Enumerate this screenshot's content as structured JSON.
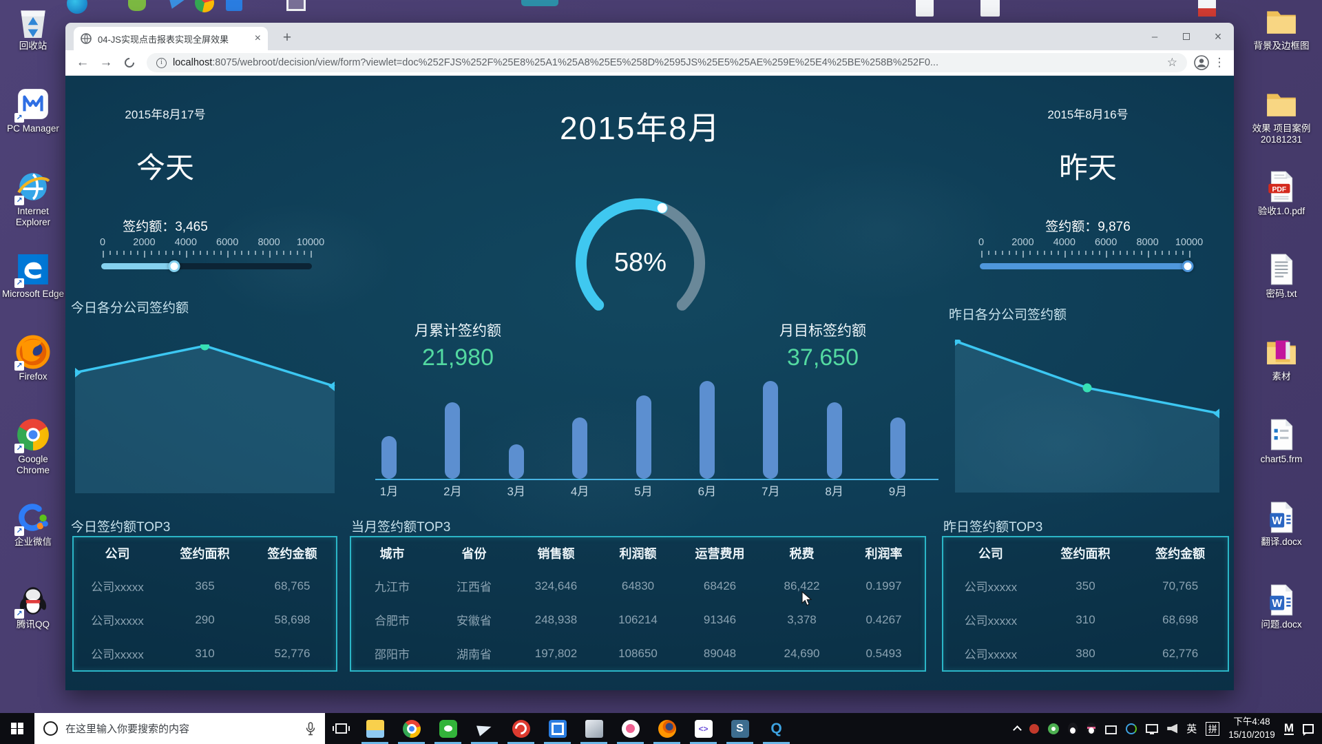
{
  "desktop": {
    "left_icons": [
      {
        "label": "回收站",
        "type": "recycle",
        "shortcut": false
      },
      {
        "label": "PC Manager",
        "type": "pcmanager",
        "shortcut": true
      },
      {
        "label": "Internet Explorer",
        "type": "ie",
        "shortcut": true
      },
      {
        "label": "Microsoft Edge",
        "type": "edge",
        "shortcut": true
      },
      {
        "label": "Firefox",
        "type": "firefox",
        "shortcut": true
      },
      {
        "label": "Google Chrome",
        "type": "chrome",
        "shortcut": true
      },
      {
        "label": "企业微信",
        "type": "wxwork",
        "shortcut": true
      },
      {
        "label": "腾讯QQ",
        "type": "qq",
        "shortcut": true
      }
    ],
    "right_icons": [
      {
        "label": "背景及边框图",
        "type": "folder",
        "shortcut": false
      },
      {
        "label": "效果 项目案例 20181231",
        "type": "folder",
        "shortcut": false
      },
      {
        "label": "验收1.0.pdf",
        "type": "pdf",
        "shortcut": false
      },
      {
        "label": "密码.txt",
        "type": "txt",
        "shortcut": false
      },
      {
        "label": "素材",
        "type": "folder-media",
        "shortcut": false
      },
      {
        "label": "chart5.frm",
        "type": "frm",
        "shortcut": false
      },
      {
        "label": "翻译.docx",
        "type": "docx",
        "shortcut": false
      },
      {
        "label": "问题.docx",
        "type": "docx",
        "shortcut": false
      }
    ]
  },
  "browser": {
    "tab_title": "04-JS实现点击报表实现全屏效果",
    "new_tab_label": "+",
    "url_host": "localhost",
    "url_rest": ":8075/webroot/decision/view/form?viewlet=doc%252FJS%252F%25E8%25A1%25A8%25E5%258D%2595JS%25E5%25AE%259E%25E4%25BE%258B%252F0..."
  },
  "dashboard": {
    "today": {
      "date": "2015年8月17号",
      "label": "今天",
      "amount_label": "签约额：",
      "amount": "3,465",
      "slider": {
        "ticks": [
          "0",
          "2000",
          "4000",
          "6000",
          "8000",
          "10000"
        ],
        "value": 3465,
        "max": 10000,
        "fill": "#85d1ef"
      }
    },
    "yesterday": {
      "date": "2015年8月16号",
      "label": "昨天",
      "amount_label": "签约额：",
      "amount": "9,876",
      "slider": {
        "ticks": [
          "0",
          "2000",
          "4000",
          "6000",
          "8000",
          "10000"
        ],
        "value": 9876,
        "max": 10000,
        "fill": "#4f97dc"
      }
    },
    "month": {
      "title": "2015年8月",
      "percent": 58,
      "percent_label": "58%",
      "cumulative_label": "月累计签约额",
      "cumulative_value": "21,980",
      "target_label": "月目标签约额",
      "target_value": "37,650"
    },
    "month_bars": {
      "categories": [
        "1月",
        "2月",
        "3月",
        "4月",
        "5月",
        "6月",
        "7月",
        "8月",
        "9月"
      ],
      "values": [
        44,
        78,
        35,
        63,
        85,
        100,
        100,
        78,
        63
      ]
    },
    "today_chart": {
      "title": "今日各分公司签约额",
      "values": [
        0.815,
        1.0,
        0.72
      ],
      "marker_index": 1
    },
    "yesterday_chart": {
      "title": "昨日各分公司签约额",
      "values": [
        1.0,
        0.685,
        0.513
      ],
      "marker_index": 1
    },
    "tables": {
      "today": {
        "title": "今日签约额TOP3",
        "headers": [
          "公司",
          "签约面积",
          "签约金额"
        ],
        "rows": [
          [
            "公司xxxxx",
            "365",
            "68,765"
          ],
          [
            "公司xxxxx",
            "290",
            "58,698"
          ],
          [
            "公司xxxxx",
            "310",
            "52,776"
          ]
        ]
      },
      "month": {
        "title": "当月签约额TOP3",
        "headers": [
          "城市",
          "省份",
          "销售额",
          "利润额",
          "运营费用",
          "税费",
          "利润率"
        ],
        "rows": [
          [
            "九江市",
            "江西省",
            "324,646",
            "64830",
            "68426",
            "86,422",
            "0.1997"
          ],
          [
            "合肥市",
            "安徽省",
            "248,938",
            "106214",
            "91346",
            "3,378",
            "0.4267"
          ],
          [
            "邵阳市",
            "湖南省",
            "197,802",
            "108650",
            "89048",
            "24,690",
            "0.5493"
          ]
        ]
      },
      "yesterday": {
        "title": "昨日签约额TOP3",
        "headers": [
          "公司",
          "签约面积",
          "签约金额"
        ],
        "rows": [
          [
            "公司xxxxx",
            "350",
            "70,765"
          ],
          [
            "公司xxxxx",
            "310",
            "68,698"
          ],
          [
            "公司xxxxx",
            "380",
            "62,776"
          ]
        ]
      }
    }
  },
  "chart_data": [
    {
      "type": "gauge",
      "title": "2015年8月",
      "value_pct": 58,
      "cumulative": 21980,
      "target": 37650,
      "legend_position": "none"
    },
    {
      "type": "bar",
      "categories": [
        "1月",
        "2月",
        "3月",
        "4月",
        "5月",
        "6月",
        "7月",
        "8月",
        "9月"
      ],
      "values_pct_of_max": [
        44,
        78,
        35,
        63,
        85,
        100,
        100,
        78,
        63
      ],
      "title": "",
      "xlabel": "",
      "ylabel": "",
      "grid": false
    },
    {
      "type": "area",
      "title": "今日各分公司签约额",
      "points_normalized": [
        0.815,
        1.0,
        0.72
      ],
      "grid": false
    },
    {
      "type": "area",
      "title": "昨日各分公司签约额",
      "points_normalized": [
        1.0,
        0.685,
        0.513
      ],
      "grid": false
    }
  ],
  "taskbar": {
    "search_placeholder": "在这里输入你要搜索的内容",
    "apps": [
      {
        "name": "file-explorer-icon"
      },
      {
        "name": "chrome-icon"
      },
      {
        "name": "wechat-icon"
      },
      {
        "name": "paper-plane-icon"
      },
      {
        "name": "netease-music-icon"
      },
      {
        "name": "blue-app-icon"
      },
      {
        "name": "gray-3d-icon"
      },
      {
        "name": "pink-app-icon"
      },
      {
        "name": "firefox-icon"
      },
      {
        "name": "purple-code-icon"
      },
      {
        "name": "sublime-icon"
      },
      {
        "name": "blue-q-icon"
      }
    ],
    "lang": "英",
    "ime": "拼",
    "time": "下午4:48",
    "date": "15/10/2019"
  }
}
